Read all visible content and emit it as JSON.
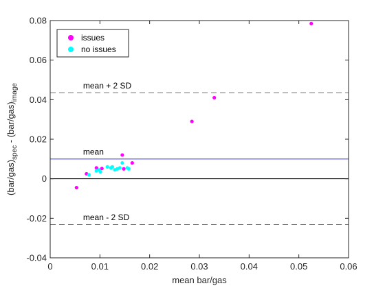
{
  "chart_data": {
    "type": "scatter",
    "title": "",
    "xlabel": "mean bar/gas",
    "ylabel": {
      "base": "(bar/gas)",
      "sub1": "spec",
      "mid": " - (bar/gas)",
      "sub2": "image"
    },
    "xlim": [
      0,
      0.06
    ],
    "ylim": [
      -0.04,
      0.08
    ],
    "xticks": [
      0,
      0.01,
      0.02,
      0.03,
      0.04,
      0.05,
      0.06
    ],
    "xtick_labels": [
      "0",
      "0.01",
      "0.02",
      "0.03",
      "0.04",
      "0.05",
      "0.06"
    ],
    "yticks": [
      -0.04,
      -0.02,
      0,
      0.02,
      0.04,
      0.06,
      0.08
    ],
    "ytick_labels": [
      "-0.04",
      "-0.02",
      "0",
      "0.02",
      "0.04",
      "0.06",
      "0.08"
    ],
    "grid": false,
    "legend_position": "top-left",
    "series": [
      {
        "name": "issues",
        "color": "#ff00ff",
        "points": [
          {
            "x": 0.0053,
            "y": -0.0045
          },
          {
            "x": 0.0073,
            "y": 0.0025
          },
          {
            "x": 0.0093,
            "y": 0.0055
          },
          {
            "x": 0.0104,
            "y": 0.0052
          },
          {
            "x": 0.0145,
            "y": 0.012
          },
          {
            "x": 0.0148,
            "y": 0.005
          },
          {
            "x": 0.0165,
            "y": 0.008
          },
          {
            "x": 0.0285,
            "y": 0.029
          },
          {
            "x": 0.033,
            "y": 0.041
          },
          {
            "x": 0.0525,
            "y": 0.0785
          }
        ]
      },
      {
        "name": "no issues",
        "color": "#00ffff",
        "points": [
          {
            "x": 0.0078,
            "y": 0.002
          },
          {
            "x": 0.0093,
            "y": 0.004
          },
          {
            "x": 0.0098,
            "y": 0.0045
          },
          {
            "x": 0.0101,
            "y": 0.0035
          },
          {
            "x": 0.0115,
            "y": 0.006
          },
          {
            "x": 0.0122,
            "y": 0.0055
          },
          {
            "x": 0.0125,
            "y": 0.006
          },
          {
            "x": 0.013,
            "y": 0.0045
          },
          {
            "x": 0.0135,
            "y": 0.005
          },
          {
            "x": 0.014,
            "y": 0.0055
          },
          {
            "x": 0.0145,
            "y": 0.008
          },
          {
            "x": 0.0155,
            "y": 0.0055
          },
          {
            "x": 0.0158,
            "y": 0.005
          }
        ]
      }
    ],
    "reference_lines": [
      {
        "name": "mean + 2 SD",
        "y": 0.0435,
        "style": "dashed",
        "color": "#6e6e6e"
      },
      {
        "name": "mean",
        "y": 0.01,
        "style": "solid",
        "color": "#3b3bdb"
      },
      {
        "name": "zero",
        "y": 0.0,
        "style": "solid",
        "color": "#000000"
      },
      {
        "name": "mean - 2 SD",
        "y": -0.0232,
        "style": "dashed",
        "color": "#6e6e6e"
      }
    ],
    "annotations": [
      {
        "text": "mean + 2 SD",
        "x": 0.0015,
        "y": 0.045
      },
      {
        "text": "mean",
        "x": 0.0015,
        "y": 0.0115
      },
      {
        "text": "mean - 2 SD",
        "x": 0.0015,
        "y": -0.0217
      }
    ]
  }
}
